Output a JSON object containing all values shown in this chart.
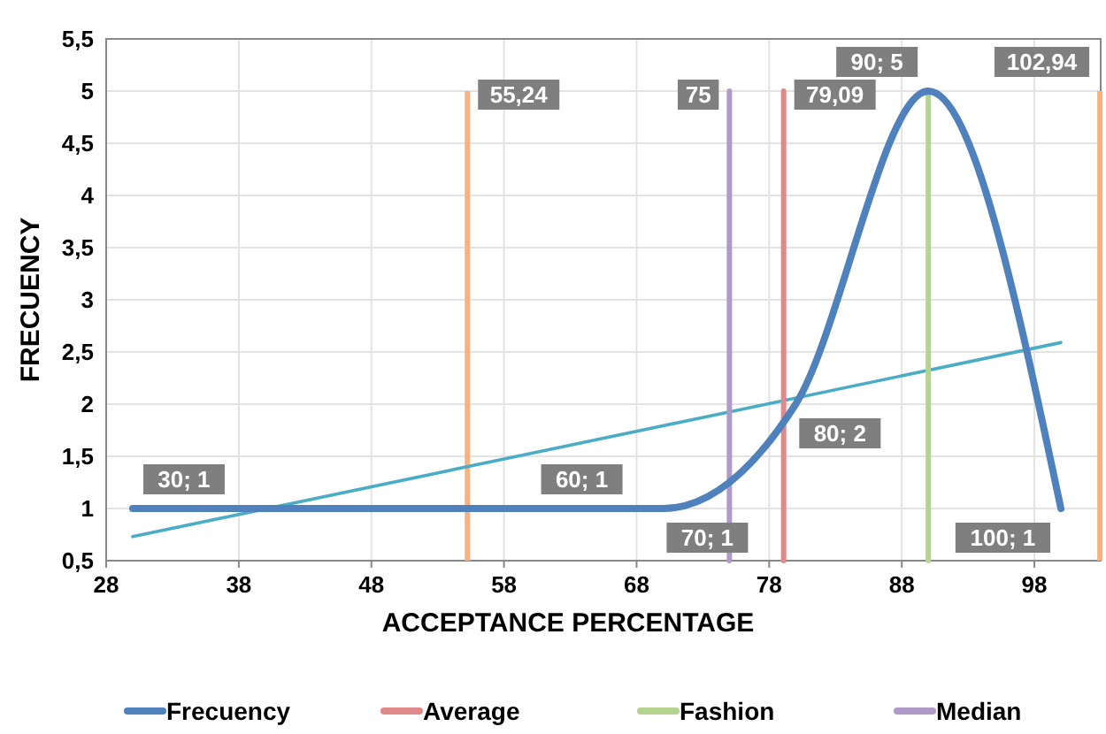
{
  "chart_data": {
    "type": "line",
    "xlabel": "ACCEPTANCE PERCENTAGE",
    "ylabel": "FRECUENCY",
    "xlim": [
      28,
      103
    ],
    "xticks": [
      28,
      38,
      48,
      58,
      68,
      78,
      88,
      98
    ],
    "ylim": [
      0.5,
      5.5
    ],
    "yticks": [
      {
        "value": 0.5,
        "label": "0,5"
      },
      1,
      {
        "value": 1.5,
        "label": "1,5"
      },
      2,
      {
        "value": 2.5,
        "label": "2,5"
      },
      3,
      {
        "value": 3.5,
        "label": "3,5"
      },
      4,
      {
        "value": 4.5,
        "label": "4,5"
      },
      5,
      {
        "value": 5.5,
        "label": "5,5"
      }
    ],
    "grid": true,
    "legend": "bottom",
    "series": [
      {
        "name": "Frecuency",
        "color": "#4f81bd",
        "x": [
          30,
          60,
          70,
          80,
          90,
          100
        ],
        "values": [
          1,
          1,
          1,
          2,
          5,
          1
        ],
        "value_labels": [
          "30; 1",
          "60; 1",
          "70; 1",
          "80; 2",
          "90; 5",
          "100; 1"
        ]
      },
      {
        "name": "Average",
        "color": "#e0898a",
        "x": [
          79.09,
          79.09
        ],
        "values": [
          0.5,
          5
        ]
      },
      {
        "name": "Fashion",
        "color": "#b5d48f",
        "x": [
          90,
          90
        ],
        "values": [
          0.5,
          5
        ]
      },
      {
        "name": "Median",
        "color": "#b09bc8",
        "x": [
          75,
          75
        ],
        "values": [
          0.5,
          5
        ]
      },
      {
        "color": "#4bacc6",
        "x": [
          30,
          100
        ],
        "values": [
          0.73,
          2.59
        ]
      }
    ],
    "annotations": [
      {
        "text": "79,09",
        "x": 79.09,
        "y": 5
      },
      {
        "text": "75",
        "x": 75,
        "y": 5
      }
    ],
    "ref_lines": [
      {
        "axis": "x",
        "value": 55.24,
        "label": "55,24",
        "color": "#f9b27f"
      },
      {
        "axis": "x",
        "value": 102.94,
        "label": "102,94",
        "color": "#f9b27f"
      }
    ]
  }
}
